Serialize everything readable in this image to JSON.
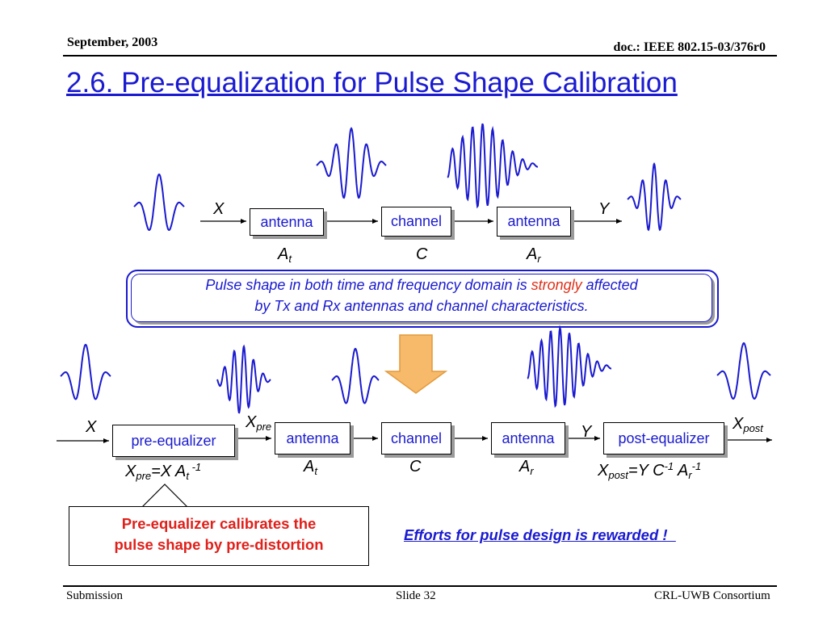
{
  "header": {
    "date": "September, 2003",
    "doc": "doc.: IEEE 802.15-03/376r0"
  },
  "title": "2.6. Pre-equalization for Pulse Shape Calibration",
  "top_chain": {
    "input_label": "X",
    "output_label": "Y",
    "blocks": [
      "antenna",
      "channel",
      "antenna"
    ],
    "sub_labels": [
      {
        "main": "A",
        "sub": "t"
      },
      {
        "main": "C",
        "sub": ""
      },
      {
        "main": "A",
        "sub": "r"
      }
    ]
  },
  "note": {
    "part1": "Pulse shape in both time and frequency domain is ",
    "emphasis": "strongly",
    "part2": " affected",
    "line2": "by Tx and Rx antennas and channel characteristics."
  },
  "bottom_chain": {
    "input_label": "X",
    "xpre_label": {
      "main": "X",
      "sub": "pre"
    },
    "y_label": "Y",
    "xpost_label": {
      "main": "X",
      "sub": "post"
    },
    "blocks": [
      "pre-equalizer",
      "antenna",
      "channel",
      "antenna",
      "post-equalizer"
    ],
    "sub_labels": [
      {
        "main": "A",
        "sub": "t"
      },
      {
        "main": "C",
        "sub": ""
      },
      {
        "main": "A",
        "sub": "r"
      }
    ],
    "pre_formula": {
      "x": "X",
      "pre": "pre",
      "eq": "=X A",
      "t": "t",
      "exp": " -1"
    },
    "post_formula": {
      "x": "X",
      "post": "post",
      "eq": "=Y C",
      "exp1": "-1",
      "a": " A",
      "r": "r",
      "exp2": "-1"
    }
  },
  "callout": {
    "line1": "Pre-equalizer calibrates the",
    "line2": "pulse shape by pre-distortion"
  },
  "effort_text": "Efforts for pulse design is rewarded !  ",
  "footer": {
    "left": "Submission",
    "center": "Slide 32",
    "right": "CRL-UWB Consortium"
  },
  "colors": {
    "accent_blue": "#1a1ad0",
    "emphasis_red": "#e0301a",
    "arrow_orange": "#f7b96a"
  }
}
